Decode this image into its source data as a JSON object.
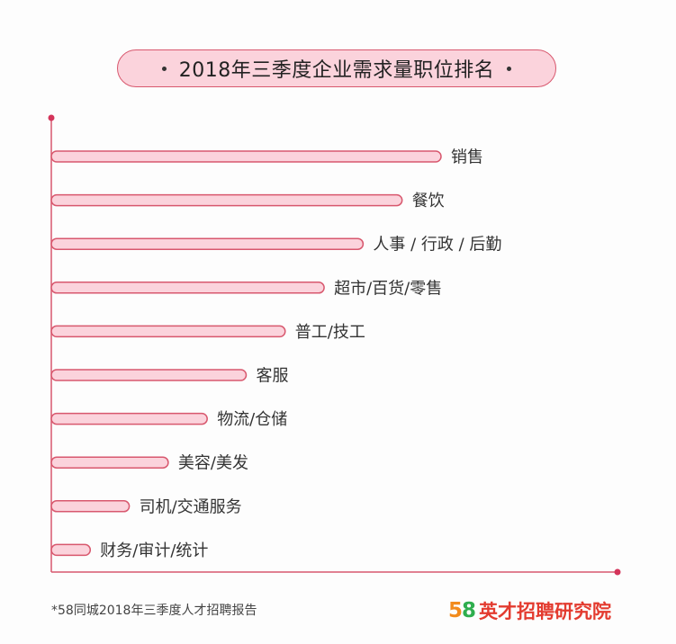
{
  "title": "2018年三季度企业需求量职位排名",
  "footnote": "*58同城2018年三季度人才招聘报告",
  "brand": {
    "logo": "58",
    "name": "英才招聘研究院"
  },
  "colors": {
    "bar_fill": "#fbd3dc",
    "bar_stroke": "#d8586e",
    "axis": "#d8586e"
  },
  "chart_data": {
    "type": "bar",
    "orientation": "horizontal",
    "title": "2018年三季度企业需求量职位排名",
    "categories": [
      "销售",
      "餐饮",
      "人事 / 行政 / 后勤",
      "超市/百货/零售",
      "普工/技工",
      "客服",
      "物流/仓储",
      "美容/美发",
      "司机/交通服务",
      "财务/审计/统计"
    ],
    "values": [
      10,
      9,
      8,
      7,
      6,
      5,
      4,
      3,
      2,
      1
    ],
    "xlim": [
      0,
      14.5
    ],
    "grid": false,
    "legend": "none"
  }
}
